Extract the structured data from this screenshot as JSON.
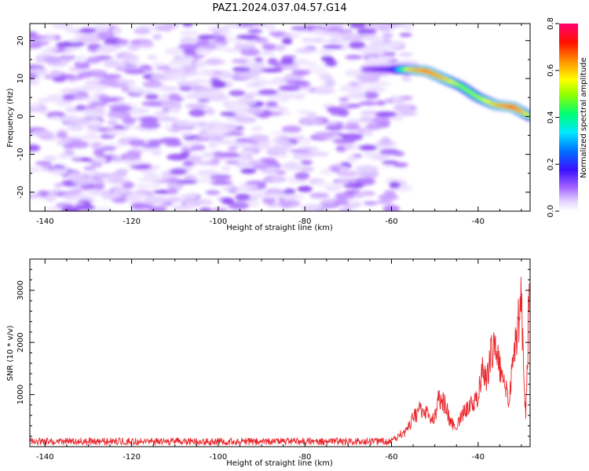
{
  "title": "PAZ1.2024.037.04.57.G14",
  "colors": {
    "snr_line": "#e8262b",
    "axis": "#000000",
    "spectrogram_scale": [
      "#f2e6ff",
      "#c9a0ff",
      "#8a2be2",
      "#3a1bff",
      "#0044ff",
      "#00ccff",
      "#00ff66",
      "#b6ff00",
      "#ffff00",
      "#ff8800",
      "#ff0000",
      "#ff0080"
    ]
  },
  "chart_data": [
    {
      "type": "heatmap",
      "xlabel": "Height of straight line (km)",
      "ylabel": "Frequency (Hz)",
      "xlim": [
        -143.5,
        -28
      ],
      "ylim": [
        -25,
        24.5
      ],
      "xticks": [
        -140,
        -120,
        -100,
        -80,
        -60,
        -40
      ],
      "yticks": [
        -20,
        -10,
        0,
        10,
        20
      ],
      "colorbar": {
        "label": "Normalized spectral amplitude",
        "range": [
          0,
          0.8
        ],
        "ticks": [
          0.0,
          0.2,
          0.4,
          0.6,
          0.8
        ],
        "tick_labels": [
          "0.0",
          "0.2",
          "0.4",
          "0.6",
          "0.8"
        ]
      },
      "noise_region": {
        "x": [
          -143.5,
          -56
        ],
        "y": [
          -25,
          24.5
        ],
        "amplitude": [
          0.0,
          0.12
        ]
      },
      "ridge": {
        "x": [
          -66,
          -60,
          -56,
          -52,
          -48,
          -44,
          -40,
          -36,
          -32,
          -28
        ],
        "freq": [
          12.4,
          12.4,
          12.4,
          12.0,
          10.0,
          8.0,
          5.0,
          3.0,
          2.5,
          0.0
        ],
        "amplitude": [
          0.12,
          0.18,
          0.6,
          0.72,
          0.62,
          0.48,
          0.5,
          0.62,
          0.75,
          0.52
        ]
      }
    },
    {
      "type": "line",
      "xlabel": "Height of straight line (km)",
      "ylabel": "SNR (10 * v/v)",
      "xlim": [
        -143.5,
        -28
      ],
      "ylim": [
        0,
        3600
      ],
      "xticks": [
        -140,
        -120,
        -100,
        -80,
        -60,
        -40
      ],
      "yticks": [
        1000,
        2000,
        3000
      ],
      "series": [
        {
          "x": [
            -143.5,
            -60,
            -57,
            -55,
            -53.5,
            -52,
            -51,
            -50,
            -49,
            -47.5,
            -46.5,
            -45,
            -44,
            -43,
            -42,
            -41,
            -40,
            -39,
            -38,
            -37,
            -36,
            -35,
            -34,
            -33,
            -32,
            -31,
            -30.5,
            -30,
            -29.5,
            -29,
            -28.5,
            -28.2
          ],
          "values": [
            100,
            110,
            280,
            540,
            700,
            650,
            500,
            560,
            960,
            800,
            480,
            330,
            560,
            700,
            800,
            850,
            1000,
            1450,
            1250,
            1800,
            2000,
            1500,
            1200,
            900,
            1600,
            2200,
            2500,
            2900,
            1300,
            650,
            2000,
            3600
          ]
        }
      ]
    }
  ]
}
